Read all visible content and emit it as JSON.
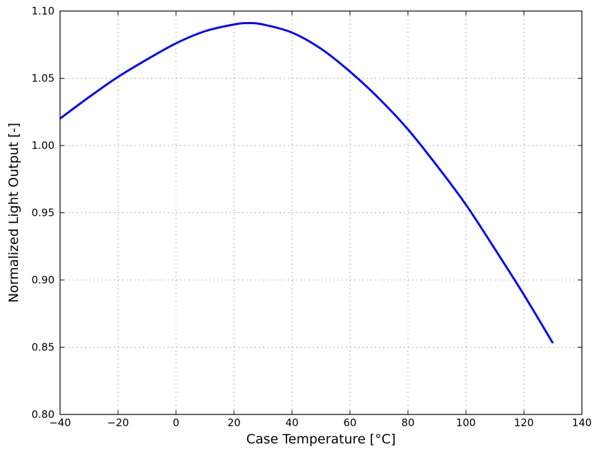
{
  "chart_data": {
    "type": "line",
    "title": "",
    "xlabel": "Case Temperature [°C]",
    "ylabel": "Normalized Light Output [-]",
    "xlim": [
      -40,
      140
    ],
    "ylim": [
      0.8,
      1.1
    ],
    "x_ticks": [
      -40,
      -20,
      0,
      20,
      40,
      60,
      80,
      100,
      120,
      140
    ],
    "x_tick_labels": [
      "−40",
      "−20",
      "0",
      "20",
      "40",
      "60",
      "80",
      "100",
      "120",
      "140"
    ],
    "y_ticks": [
      0.8,
      0.85,
      0.9,
      0.95,
      1.0,
      1.05,
      1.1
    ],
    "y_tick_labels": [
      "0.80",
      "0.85",
      "0.90",
      "0.95",
      "1.00",
      "1.05",
      "1.10"
    ],
    "grid": true,
    "series": [
      {
        "color": "#0000ff",
        "x": [
          -40,
          -30,
          -20,
          -10,
          0,
          10,
          20,
          25,
          30,
          40,
          50,
          60,
          70,
          80,
          90,
          100,
          110,
          120,
          130
        ],
        "y": [
          1.02,
          1.036,
          1.051,
          1.064,
          1.076,
          1.085,
          1.09,
          1.091,
          1.09,
          1.084,
          1.072,
          1.055,
          1.035,
          1.012,
          0.985,
          0.956,
          0.923,
          0.889,
          0.853
        ]
      }
    ]
  }
}
